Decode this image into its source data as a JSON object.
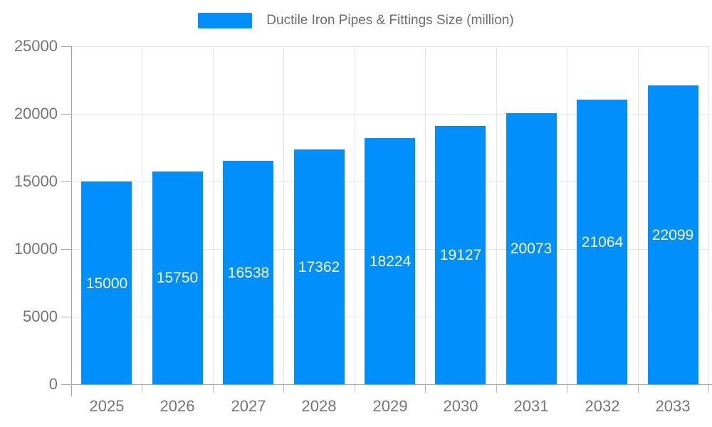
{
  "chart_data": {
    "type": "bar",
    "title": "Ductile Iron Pipes & Fittings Size (million)",
    "legend": {
      "label": "Ductile Iron Pipes & Fittings Size (million)",
      "position": "top"
    },
    "categories": [
      "2025",
      "2026",
      "2027",
      "2028",
      "2029",
      "2030",
      "2031",
      "2032",
      "2033"
    ],
    "series": [
      {
        "name": "Ductile Iron Pipes & Fittings Size (million)",
        "values": [
          15000,
          15750,
          16538,
          17362,
          18224,
          19127,
          20073,
          21064,
          22099
        ]
      }
    ],
    "data_labels": [
      15000,
      15750,
      16538,
      17362,
      18224,
      19127,
      20073,
      21064,
      22099
    ],
    "xlabel": "",
    "ylabel": "",
    "ylim": [
      0,
      25000
    ],
    "yticks": [
      0,
      5000,
      10000,
      15000,
      20000,
      25000
    ],
    "grid": "horizontal and vertical gridlines on",
    "legend_position": "top center",
    "colors": {
      "bar": "#008ffb",
      "data_label": "#ffffff",
      "axis_text": "#757575",
      "legend_text": "#6e6e6e",
      "grid": "#e6e6e6",
      "axis_line": "#a6a6a6",
      "background": "#ffffff"
    }
  }
}
